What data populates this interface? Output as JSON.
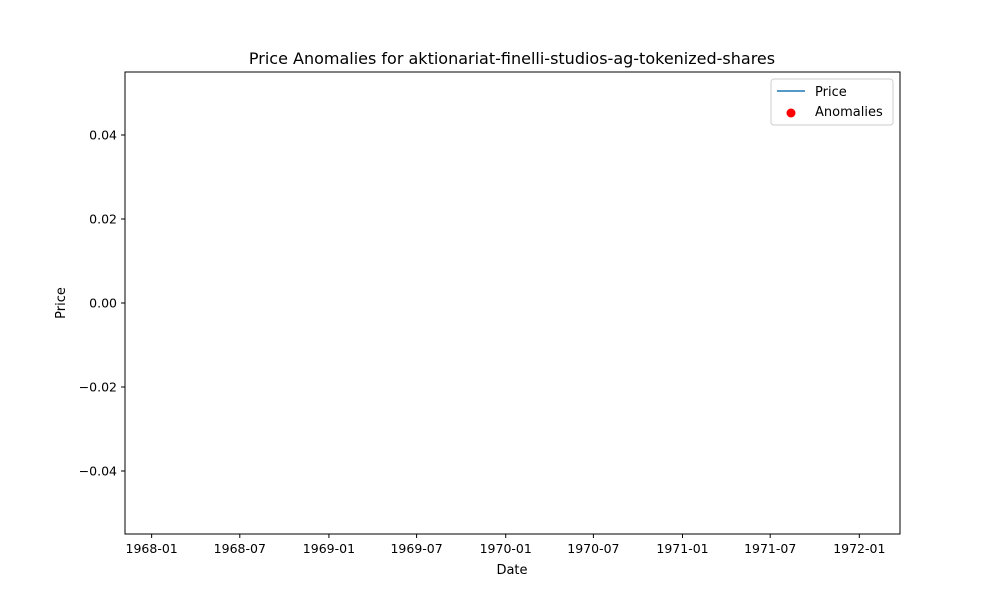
{
  "chart_data": {
    "type": "line",
    "title": "Price Anomalies for aktionariat-finelli-studios-ag-tokenized-shares",
    "xlabel": "Date",
    "ylabel": "Price",
    "x_ticks": [
      "1968-01",
      "1968-07",
      "1969-01",
      "1969-07",
      "1970-01",
      "1970-07",
      "1971-01",
      "1971-07",
      "1972-01"
    ],
    "y_ticks": [
      "0.04",
      "0.02",
      "0.00",
      "−0.02",
      "−0.04"
    ],
    "y_tick_values": [
      0.04,
      0.02,
      0.0,
      -0.02,
      -0.04
    ],
    "ylim": [
      -0.055,
      0.055
    ],
    "xlim": [
      "1967-11-07",
      "1972-03-25"
    ],
    "grid": false,
    "legend_position": "top-right",
    "series": [
      {
        "name": "Price",
        "kind": "line",
        "color": "#1f77b4",
        "points": []
      },
      {
        "name": "Anomalies",
        "kind": "scatter",
        "color": "#ff0000",
        "points": []
      }
    ]
  }
}
